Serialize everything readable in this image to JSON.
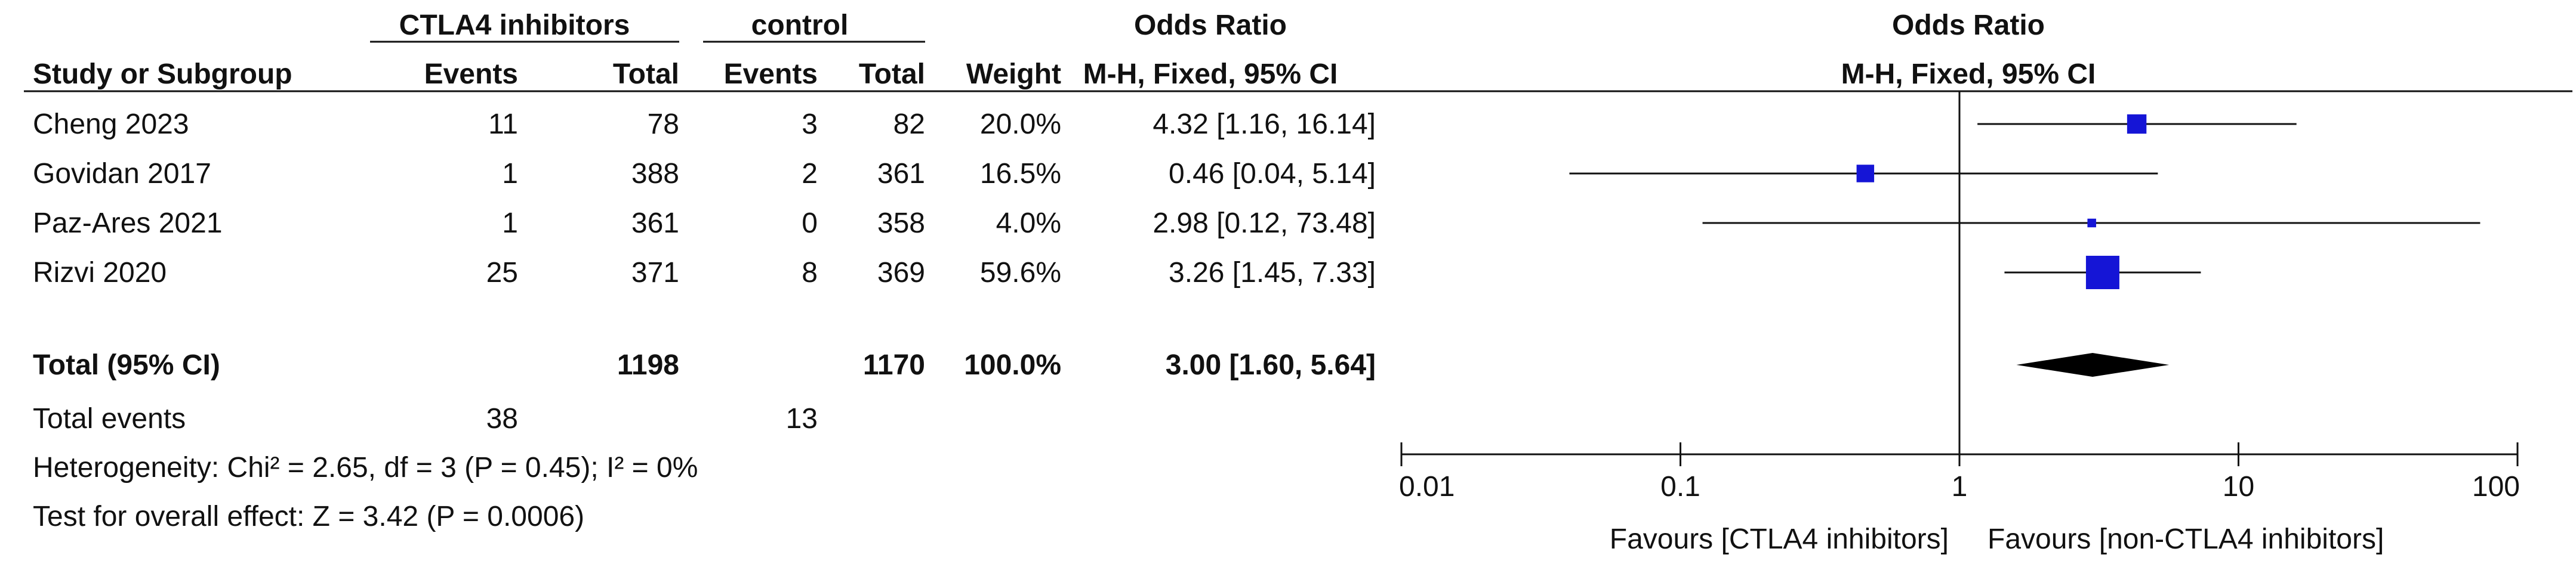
{
  "chart_data": {
    "type": "forest",
    "table_headers": {
      "group1": "CTLA4 inhibitors",
      "group2": "control",
      "effect_group": "Odds Ratio",
      "study": "Study or Subgroup",
      "events": "Events",
      "total": "Total",
      "weight": "Weight",
      "method": "M-H, Fixed, 95% CI"
    },
    "plot_headers": {
      "title": "Odds Ratio",
      "subtitle": "M-H, Fixed, 95% CI"
    },
    "studies": [
      {
        "name": "Cheng 2023",
        "events1": "11",
        "total1": "78",
        "events2": "3",
        "total2": "82",
        "weight": "20.0%",
        "ci_text": "4.32 [1.16, 16.14]",
        "or": 4.32,
        "lo": 1.16,
        "hi": 16.14,
        "weight_value": 20.0
      },
      {
        "name": "Govidan 2017",
        "events1": "1",
        "total1": "388",
        "events2": "2",
        "total2": "361",
        "weight": "16.5%",
        "ci_text": "0.46 [0.04, 5.14]",
        "or": 0.46,
        "lo": 0.04,
        "hi": 5.14,
        "weight_value": 16.5
      },
      {
        "name": "Paz-Ares 2021",
        "events1": "1",
        "total1": "361",
        "events2": "0",
        "total2": "358",
        "weight": "4.0%",
        "ci_text": "2.98 [0.12, 73.48]",
        "or": 2.98,
        "lo": 0.12,
        "hi": 73.48,
        "weight_value": 4.0
      },
      {
        "name": "Rizvi 2020",
        "events1": "25",
        "total1": "371",
        "events2": "8",
        "total2": "369",
        "weight": "59.6%",
        "ci_text": "3.26 [1.45, 7.33]",
        "or": 3.26,
        "lo": 1.45,
        "hi": 7.33,
        "weight_value": 59.6
      }
    ],
    "total": {
      "label": "Total (95% CI)",
      "total1": "1198",
      "total2": "1170",
      "weight": "100.0%",
      "ci_text": "3.00 [1.60, 5.64]",
      "or": 3.0,
      "lo": 1.6,
      "hi": 5.64
    },
    "total_events": {
      "label": "Total events",
      "events1": "38",
      "events2": "13"
    },
    "heterogeneity": "Heterogeneity: Chi² = 2.65, df = 3 (P = 0.45); I² = 0%",
    "overall_effect": "Test for overall effect: Z = 3.42 (P = 0.0006)",
    "axis": {
      "scale": "log",
      "range": [
        0.01,
        100
      ],
      "ticks": [
        0.01,
        0.1,
        1,
        10,
        100
      ],
      "tick_labels": [
        "0.01",
        "0.1",
        "1",
        "10",
        "100"
      ],
      "null_value": 1
    },
    "favours_left": "Favours [CTLA4 inhibitors]",
    "favours_right": "Favours [non-CTLA4 inhibitors]",
    "marker_color": "#1515d6",
    "diamond_color": "#000000"
  }
}
